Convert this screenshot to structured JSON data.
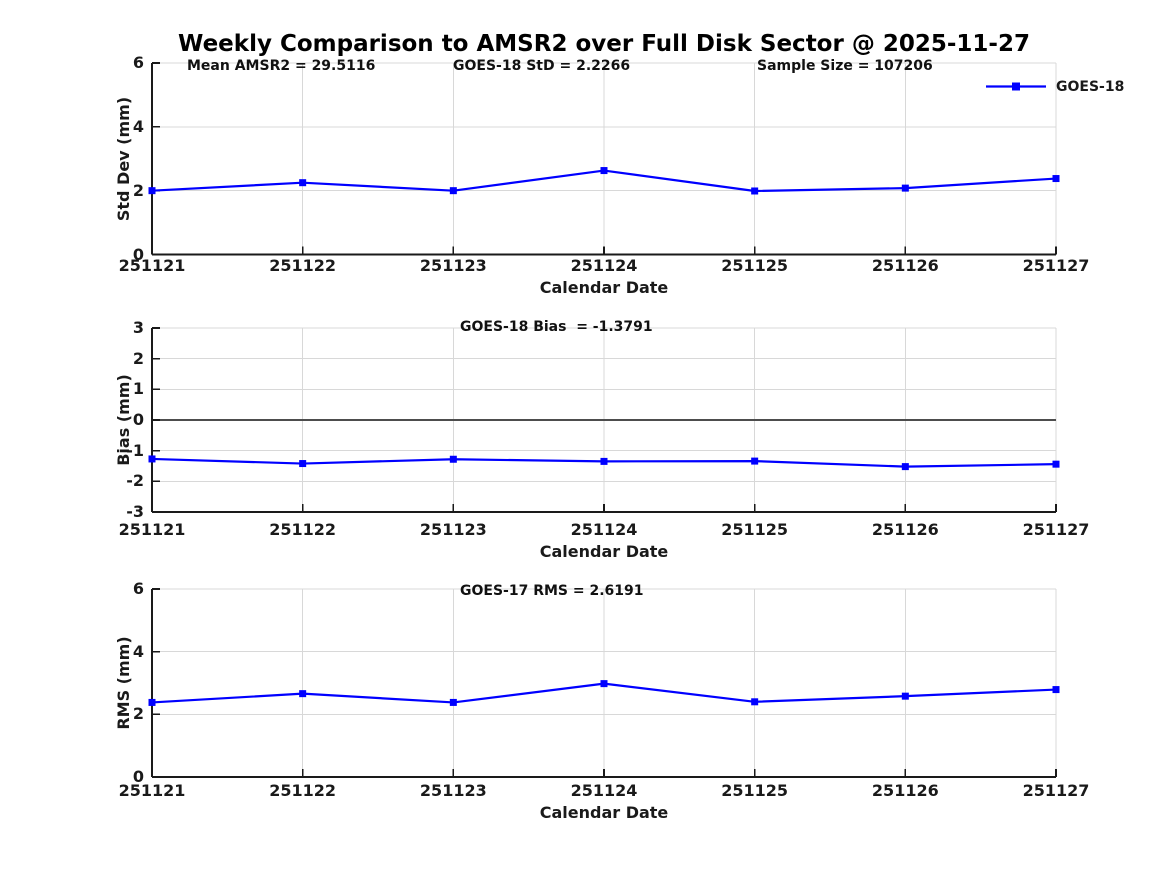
{
  "title": "Weekly Comparison to AMSR2 over Full Disk Sector @ 2025-11-27",
  "legend": {
    "label": "GOES-18",
    "position": "top-right"
  },
  "colors": {
    "line": "#0000FF",
    "grid": "#d8d8d8",
    "axis": "#1a1a1a",
    "zero_line": "#4d4d4d",
    "text": "#1a1a1a",
    "background": "#ffffff"
  },
  "chart_data": [
    {
      "type": "line",
      "categories": [
        "251121",
        "251122",
        "251123",
        "251124",
        "251125",
        "251126",
        "251127"
      ],
      "series": [
        {
          "name": "GOES-18",
          "values": [
            2.0,
            2.25,
            2.0,
            2.63,
            1.99,
            2.08,
            2.38
          ]
        }
      ],
      "annotations": [
        "Mean AMSR2 = 29.5116",
        "GOES-18 StD = 2.2266",
        "Sample Size = 107206"
      ],
      "xlabel": "Calendar Date",
      "ylabel": "Std Dev (mm)",
      "ylim": [
        0,
        6
      ],
      "yticks": [
        0,
        2,
        4,
        6
      ],
      "grid": true,
      "zero_line": false,
      "legend_entries": [
        "GOES-18"
      ]
    },
    {
      "type": "line",
      "categories": [
        "251121",
        "251122",
        "251123",
        "251124",
        "251125",
        "251126",
        "251127"
      ],
      "series": [
        {
          "name": "GOES-18",
          "values": [
            -1.27,
            -1.42,
            -1.28,
            -1.35,
            -1.34,
            -1.52,
            -1.44
          ]
        }
      ],
      "annotations": [
        "GOES-18 Bias  = -1.3791"
      ],
      "xlabel": "Calendar Date",
      "ylabel": "Bias (mm)",
      "ylim": [
        -3,
        3
      ],
      "yticks": [
        -3,
        -2,
        -1,
        0,
        1,
        2,
        3
      ],
      "grid": true,
      "zero_line": true
    },
    {
      "type": "line",
      "categories": [
        "251121",
        "251122",
        "251123",
        "251124",
        "251125",
        "251126",
        "251127"
      ],
      "series": [
        {
          "name": "GOES-18",
          "values": [
            2.38,
            2.66,
            2.38,
            2.98,
            2.4,
            2.58,
            2.79
          ]
        }
      ],
      "annotations": [
        "GOES-17 RMS = 2.6191"
      ],
      "xlabel": "Calendar Date",
      "ylabel": "RMS (mm)",
      "ylim": [
        0,
        6
      ],
      "yticks": [
        0,
        2,
        4,
        6
      ],
      "grid": true,
      "zero_line": false
    }
  ]
}
